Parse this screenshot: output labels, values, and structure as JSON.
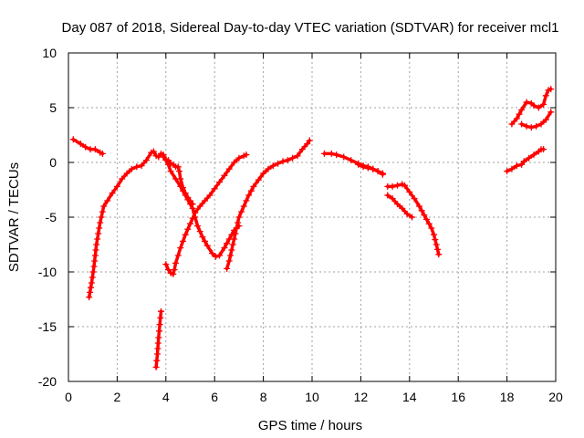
{
  "chart_data": {
    "type": "scatter",
    "title": "Day 087 of 2018, Sidereal Day-to-day VTEC variation (SDTVAR) for receiver mcl1",
    "xlabel": "GPS time / hours",
    "ylabel": "SDTVAR / TECUs",
    "xlim": [
      0,
      20
    ],
    "ylim": [
      -20,
      10
    ],
    "xticks": [
      0,
      2,
      4,
      6,
      8,
      10,
      12,
      14,
      16,
      18,
      20
    ],
    "yticks": [
      -20,
      -15,
      -10,
      -5,
      0,
      5,
      10
    ],
    "grid": true,
    "marker": "+",
    "color": "#ff0000",
    "series": [
      {
        "name": "s1",
        "points": [
          [
            0.2,
            2.1
          ],
          [
            0.5,
            1.7
          ],
          [
            0.7,
            1.4
          ],
          [
            0.9,
            1.2
          ],
          [
            1.1,
            1.2
          ],
          [
            1.3,
            0.9
          ],
          [
            1.4,
            0.8
          ]
        ]
      },
      {
        "name": "s2",
        "points": [
          [
            0.85,
            -12.3
          ],
          [
            0.95,
            -11
          ],
          [
            1.05,
            -9.5
          ],
          [
            1.15,
            -7.5
          ],
          [
            1.3,
            -5.5
          ],
          [
            1.45,
            -4
          ],
          [
            1.6,
            -3.5
          ],
          [
            1.8,
            -2.8
          ],
          [
            2.0,
            -2.2
          ],
          [
            2.2,
            -1.5
          ],
          [
            2.4,
            -1
          ],
          [
            2.6,
            -0.6
          ],
          [
            2.8,
            -0.4
          ],
          [
            3.0,
            -0.3
          ],
          [
            3.2,
            0.2
          ],
          [
            3.4,
            0.9
          ],
          [
            3.5,
            1.0
          ],
          [
            3.6,
            0.6
          ],
          [
            3.7,
            0.5
          ],
          [
            3.8,
            0.8
          ],
          [
            3.9,
            0.7
          ],
          [
            4.0,
            0.3
          ],
          [
            4.1,
            -0.2
          ],
          [
            4.2,
            -0.8
          ],
          [
            4.4,
            -1.5
          ],
          [
            4.6,
            -2.2
          ],
          [
            4.8,
            -3
          ],
          [
            5.0,
            -3.8
          ],
          [
            5.1,
            -4.2
          ],
          [
            5.2,
            -5
          ],
          [
            5.3,
            -5.8
          ],
          [
            5.5,
            -6.8
          ],
          [
            5.7,
            -7.6
          ],
          [
            5.9,
            -8.3
          ],
          [
            6.05,
            -8.6
          ],
          [
            6.2,
            -8.5
          ],
          [
            6.4,
            -7.8
          ],
          [
            6.6,
            -7
          ],
          [
            6.8,
            -6.2
          ],
          [
            7.0,
            -5.8
          ]
        ]
      },
      {
        "name": "s3",
        "points": [
          [
            3.6,
            -18.7
          ],
          [
            3.65,
            -17.5
          ],
          [
            3.7,
            -16
          ],
          [
            3.75,
            -14.8
          ],
          [
            3.8,
            -13.6
          ]
        ]
      },
      {
        "name": "s4",
        "points": [
          [
            3.9,
            0.5
          ],
          [
            4.0,
            0.2
          ],
          [
            4.1,
            0.2
          ],
          [
            4.2,
            -0.1
          ],
          [
            4.3,
            -0.2
          ],
          [
            4.4,
            -0.4
          ],
          [
            4.5,
            -0.4
          ],
          [
            4.55,
            -0.8
          ],
          [
            4.6,
            -1.5
          ],
          [
            4.7,
            -2.3
          ],
          [
            4.8,
            -2.8
          ],
          [
            4.9,
            -3.2
          ],
          [
            5.0,
            -3.5
          ],
          [
            5.1,
            -3.8
          ]
        ]
      },
      {
        "name": "s5",
        "points": [
          [
            4.0,
            -9.3
          ],
          [
            4.1,
            -9.8
          ],
          [
            4.2,
            -10.1
          ],
          [
            4.3,
            -10.2
          ],
          [
            4.35,
            -9.8
          ],
          [
            4.4,
            -9.2
          ],
          [
            4.5,
            -8.5
          ],
          [
            4.6,
            -7.8
          ],
          [
            4.7,
            -7.2
          ],
          [
            4.8,
            -6.6
          ],
          [
            5.0,
            -5.6
          ],
          [
            5.2,
            -4.6
          ],
          [
            5.4,
            -4
          ],
          [
            5.6,
            -3.5
          ],
          [
            5.8,
            -3
          ],
          [
            6.0,
            -2.4
          ],
          [
            6.2,
            -1.8
          ],
          [
            6.4,
            -1.2
          ],
          [
            6.6,
            -0.6
          ],
          [
            6.8,
            0
          ],
          [
            7.0,
            0.4
          ],
          [
            7.2,
            0.6
          ],
          [
            7.3,
            0.7
          ]
        ]
      },
      {
        "name": "s6",
        "points": [
          [
            6.5,
            -9.7
          ],
          [
            6.6,
            -9
          ],
          [
            6.7,
            -8
          ],
          [
            6.8,
            -7
          ],
          [
            6.9,
            -6
          ],
          [
            7.0,
            -5
          ],
          [
            7.2,
            -4
          ],
          [
            7.4,
            -3
          ],
          [
            7.6,
            -2.2
          ],
          [
            7.8,
            -1.6
          ],
          [
            8.0,
            -1
          ],
          [
            8.2,
            -0.6
          ],
          [
            8.4,
            -0.3
          ],
          [
            8.6,
            -0.1
          ],
          [
            8.8,
            0.1
          ],
          [
            9.0,
            0.2
          ],
          [
            9.2,
            0.4
          ],
          [
            9.4,
            0.6
          ],
          [
            9.6,
            1.2
          ],
          [
            9.8,
            1.7
          ],
          [
            9.9,
            2.0
          ]
        ]
      },
      {
        "name": "s7",
        "points": [
          [
            10.5,
            0.8
          ],
          [
            10.8,
            0.8
          ],
          [
            11.0,
            0.7
          ],
          [
            11.3,
            0.5
          ],
          [
            11.6,
            0.2
          ],
          [
            11.9,
            -0.1
          ],
          [
            12.1,
            -0.3
          ],
          [
            12.3,
            -0.4
          ],
          [
            12.5,
            -0.6
          ],
          [
            12.7,
            -0.8
          ],
          [
            12.9,
            -1.0
          ]
        ]
      },
      {
        "name": "s8",
        "points": [
          [
            11.9,
            -0.2
          ],
          [
            12.1,
            -0.4
          ],
          [
            12.3,
            -0.5
          ],
          [
            12.5,
            -0.6
          ],
          [
            12.7,
            -0.8
          ],
          [
            12.9,
            -1.1
          ]
        ]
      },
      {
        "name": "s9",
        "points": [
          [
            13.1,
            -2.2
          ],
          [
            13.3,
            -2.2
          ],
          [
            13.5,
            -2.1
          ],
          [
            13.7,
            -2.0
          ],
          [
            13.8,
            -2.1
          ],
          [
            14.0,
            -2.7
          ],
          [
            14.2,
            -3.3
          ],
          [
            14.4,
            -4
          ],
          [
            14.6,
            -4.8
          ],
          [
            14.8,
            -5.6
          ],
          [
            14.9,
            -6
          ],
          [
            15.0,
            -6.6
          ],
          [
            15.1,
            -7.5
          ],
          [
            15.2,
            -8.4
          ]
        ]
      },
      {
        "name": "s10",
        "points": [
          [
            13.1,
            -3.0
          ],
          [
            13.3,
            -3.3
          ],
          [
            13.5,
            -3.8
          ],
          [
            13.7,
            -4.2
          ],
          [
            13.9,
            -4.7
          ],
          [
            14.1,
            -5.0
          ]
        ]
      },
      {
        "name": "s11",
        "points": [
          [
            18.0,
            -0.8
          ],
          [
            18.2,
            -0.6
          ],
          [
            18.4,
            -0.3
          ],
          [
            18.6,
            -0.2
          ],
          [
            18.7,
            0.1
          ],
          [
            18.9,
            0.4
          ],
          [
            19.1,
            0.7
          ],
          [
            19.3,
            1.0
          ],
          [
            19.4,
            1.2
          ],
          [
            19.5,
            1.2
          ]
        ]
      },
      {
        "name": "s12",
        "points": [
          [
            18.6,
            3.5
          ],
          [
            18.8,
            3.3
          ],
          [
            19.0,
            3.2
          ],
          [
            19.2,
            3.3
          ],
          [
            19.4,
            3.5
          ],
          [
            19.6,
            3.9
          ],
          [
            19.8,
            4.6
          ]
        ]
      },
      {
        "name": "s13",
        "points": [
          [
            18.2,
            3.5
          ],
          [
            18.4,
            4
          ],
          [
            18.6,
            4.8
          ],
          [
            18.8,
            5.5
          ],
          [
            19.0,
            5.4
          ],
          [
            19.1,
            5.2
          ],
          [
            19.3,
            5.0
          ],
          [
            19.5,
            5.3
          ],
          [
            19.6,
            6.1
          ],
          [
            19.7,
            6.6
          ],
          [
            19.8,
            6.7
          ]
        ]
      }
    ]
  }
}
